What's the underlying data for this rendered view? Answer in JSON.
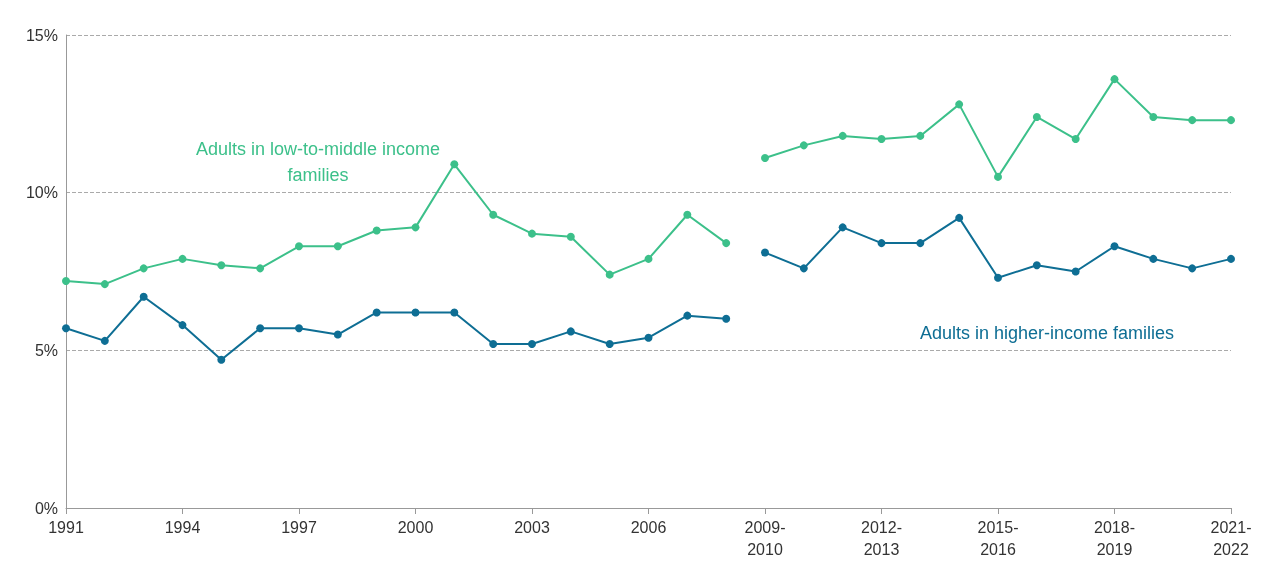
{
  "chart_data": {
    "type": "line",
    "categories": [
      "1991",
      null,
      null,
      "1994",
      null,
      null,
      "1997",
      null,
      null,
      "2000",
      null,
      null,
      "2003",
      null,
      null,
      "2006",
      null,
      null,
      "2009-2010",
      null,
      null,
      "2012-2013",
      null,
      null,
      "2015-2016",
      null,
      null,
      "2018-2019",
      null,
      null,
      "2021-2022"
    ],
    "series": [
      {
        "name": "Adults in low-to-middle income families",
        "color": "#3cc08a",
        "values": [
          7.2,
          7.1,
          7.6,
          7.9,
          7.7,
          7.6,
          8.3,
          8.3,
          8.8,
          8.9,
          10.9,
          9.3,
          8.7,
          8.6,
          7.4,
          7.9,
          9.3,
          8.4,
          null,
          null,
          null,
          null,
          null,
          null,
          null,
          null,
          null,
          null,
          null,
          null,
          null
        ]
      },
      {
        "color": "#3cc08a",
        "values": [
          null,
          null,
          null,
          null,
          null,
          null,
          null,
          null,
          null,
          null,
          null,
          null,
          null,
          null,
          null,
          null,
          null,
          null,
          11.1,
          11.5,
          11.8,
          11.7,
          11.8,
          12.8,
          10.5,
          12.4,
          11.7,
          13.6,
          12.4,
          12.3,
          12.3
        ]
      },
      {
        "name": "Adults in higher-income families",
        "color": "#0e6e94",
        "values": [
          5.7,
          5.3,
          6.7,
          5.8,
          4.7,
          5.7,
          5.7,
          5.5,
          6.2,
          6.2,
          6.2,
          5.2,
          5.2,
          5.6,
          5.2,
          5.4,
          6.1,
          6.0,
          null,
          null,
          null,
          null,
          null,
          null,
          null,
          null,
          null,
          null,
          null,
          null,
          null
        ]
      },
      {
        "color": "#0e6e94",
        "values": [
          null,
          null,
          null,
          null,
          null,
          null,
          null,
          null,
          null,
          null,
          null,
          null,
          null,
          null,
          null,
          null,
          null,
          null,
          8.1,
          7.6,
          8.9,
          8.4,
          8.4,
          9.2,
          7.3,
          7.7,
          7.5,
          8.3,
          7.9,
          7.6,
          7.9
        ]
      }
    ],
    "ylim": [
      0,
      15
    ],
    "yticks": [
      {
        "value": 0,
        "label": "0%"
      },
      {
        "value": 5,
        "label": "5%"
      },
      {
        "value": 10,
        "label": "10%"
      },
      {
        "value": 15,
        "label": "15%"
      }
    ],
    "grid": "y",
    "legend": false,
    "marker": "circle",
    "line_style": "solid"
  }
}
